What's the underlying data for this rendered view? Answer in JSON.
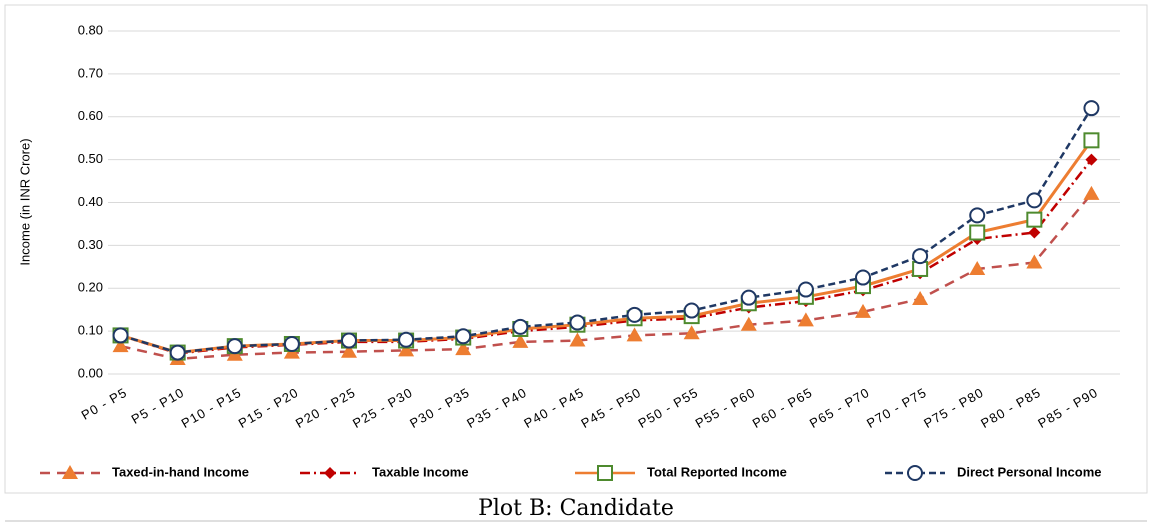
{
  "chart_data": {
    "type": "line",
    "y_label": "Income (in INR Crore)",
    "caption": "Plot B: Candidate",
    "categories": [
      "P0 - P5",
      "P5 - P10",
      "P10 - P15",
      "P15 - P20",
      "P20 - P25",
      "P25 - P30",
      "P30 - P35",
      "P35 - P40",
      "P40 - P45",
      "P45 - P50",
      "P50 - P55",
      "P55 - P60",
      "P60 - P65",
      "P65 - P70",
      "P70 - P75",
      "P75 - P80",
      "P80 - P85",
      "P85 - P90"
    ],
    "series": [
      {
        "name": "Taxed-in-hand Income",
        "color": "#c0504d",
        "marker_color": "#ed7d31",
        "marker": "triangle",
        "dash": "10,7",
        "values": [
          0.065,
          0.035,
          0.045,
          0.05,
          0.052,
          0.055,
          0.058,
          0.075,
          0.078,
          0.09,
          0.095,
          0.115,
          0.125,
          0.145,
          0.175,
          0.245,
          0.26,
          0.42
        ]
      },
      {
        "name": "Taxable Income",
        "color": "#c00000",
        "marker_color": "#c00000",
        "marker": "diamond",
        "dash": "10,4,2,4",
        "values": [
          0.09,
          0.048,
          0.062,
          0.068,
          0.075,
          0.075,
          0.082,
          0.1,
          0.11,
          0.125,
          0.13,
          0.155,
          0.17,
          0.195,
          0.235,
          0.315,
          0.33,
          0.5
        ]
      },
      {
        "name": "Total Reported Income",
        "color": "#ed7d31",
        "marker_color": "#4e8a2e",
        "marker": "square",
        "dash": "none",
        "values": [
          0.09,
          0.05,
          0.065,
          0.07,
          0.078,
          0.078,
          0.085,
          0.105,
          0.115,
          0.13,
          0.135,
          0.165,
          0.18,
          0.205,
          0.245,
          0.33,
          0.36,
          0.545
        ]
      },
      {
        "name": "Direct Personal Income",
        "color": "#1f3864",
        "marker_color": "#1f3864",
        "marker": "circle",
        "dash": "7,4",
        "values": [
          0.09,
          0.05,
          0.065,
          0.07,
          0.078,
          0.08,
          0.088,
          0.11,
          0.12,
          0.138,
          0.148,
          0.178,
          0.197,
          0.225,
          0.275,
          0.37,
          0.405,
          0.62
        ]
      }
    ],
    "ylim": [
      0,
      0.8
    ],
    "yticks": [
      {
        "value": 0,
        "label": "0.00"
      },
      {
        "value": 0.1,
        "label": "0.10"
      },
      {
        "value": 0.2,
        "label": "0.20"
      },
      {
        "value": 0.3,
        "label": "0.30"
      },
      {
        "value": 0.4,
        "label": "0.40"
      },
      {
        "value": 0.5,
        "label": "0.50"
      },
      {
        "value": 0.6,
        "label": "0.60"
      },
      {
        "value": 0.7,
        "label": "0.70"
      },
      {
        "value": 0.8,
        "label": "0.80"
      }
    ],
    "grid": true,
    "legend": "bottom"
  }
}
